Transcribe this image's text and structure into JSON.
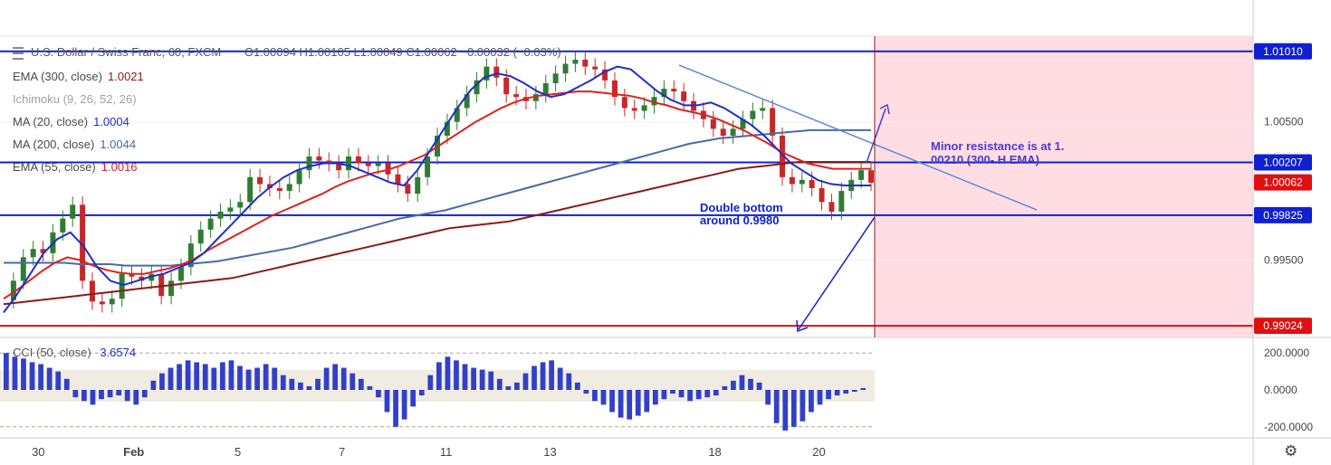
{
  "header": {
    "symbol": "U.S. Dollar / Swiss Franc, 60, FXCM",
    "ohlc": "O1.00094  H1.00105  L1.00049  C1.00062  −0.00032 (−0.03%)"
  },
  "indicators": [
    {
      "name": "EMA (300, close)",
      "value": "1.0021",
      "color": "#8b1a1a"
    },
    {
      "name": "Ichimoku (9, 26, 52, 26)",
      "value": "",
      "color": "#9a9a9a"
    },
    {
      "name": "MA (20, close)",
      "value": "1.0004",
      "color": "#1f2fc8"
    },
    {
      "name": "MA (200, close)",
      "value": "1.0044",
      "color": "#4a6aa8"
    },
    {
      "name": "EMA (55, close)",
      "value": "1.0016",
      "color": "#e02020"
    }
  ],
  "cci": {
    "label": "CCI (50, close)",
    "value": "3.6574"
  },
  "annotations": {
    "resistance": "Minor resistance is at 1. 00210 (300- H EMA)",
    "support_line1": "Double bottom",
    "support_line2": "around 0.9980"
  },
  "icons": {
    "settings": "gear-icon"
  },
  "colors": {
    "bull": "#2e7d32",
    "bear": "#c62828",
    "forecast_zone": "#ffdde3",
    "hline_blue": "#1020d0",
    "hline_red": "#e01010"
  },
  "chart_data": {
    "type": "line",
    "title": "U.S. Dollar / Swiss Franc, 60, FXCM",
    "xlabel": "",
    "ylabel": "",
    "ylim": [
      0.9894,
      1.0112
    ],
    "x_ticks": [
      {
        "label": "30",
        "idx": 4
      },
      {
        "label": "Feb",
        "idx": 15
      },
      {
        "label": "5",
        "idx": 27
      },
      {
        "label": "7",
        "idx": 39
      },
      {
        "label": "11",
        "idx": 51
      },
      {
        "label": "13",
        "idx": 63
      },
      {
        "label": "18",
        "idx": 82
      },
      {
        "label": "20",
        "idx": 94
      }
    ],
    "y_ticks": [
      1.005,
      0.995
    ],
    "y_tick_labels": [
      "1.00500",
      "0.99500"
    ],
    "price_tags": [
      {
        "label": "1.01010",
        "value": 1.0101,
        "color": "#1020d0"
      },
      {
        "label": "1.00207",
        "value": 1.00207,
        "color": "#1020d0"
      },
      {
        "label": "1.00062",
        "value": 1.00062,
        "color": "#e01010"
      },
      {
        "label": "0.99825",
        "value": 0.99825,
        "color": "#1020d0"
      },
      {
        "label": "0.99024",
        "value": 0.99024,
        "color": "#e01010"
      }
    ],
    "horizontal_lines": [
      {
        "value": 1.0101,
        "color": "#1020d0"
      },
      {
        "value": 1.00207,
        "color": "#1020d0"
      },
      {
        "value": 0.99825,
        "color": "#1020d0"
      },
      {
        "value": 0.99024,
        "color": "#e01010"
      }
    ],
    "close": [
      0.9921,
      0.9935,
      0.9952,
      0.9958,
      0.9955,
      0.997,
      0.998,
      0.999,
      0.9935,
      0.992,
      0.9918,
      0.9922,
      0.994,
      0.9938,
      0.9935,
      0.994,
      0.9924,
      0.9935,
      0.9945,
      0.9962,
      0.9972,
      0.998,
      0.9985,
      0.9988,
      0.9992,
      1.001,
      1.0005,
      1.0002,
      1.0,
      1.0005,
      1.0015,
      1.0025,
      1.0022,
      1.002,
      1.0015,
      1.0025,
      1.002,
      1.0018,
      1.002,
      1.0012,
      1.0005,
      0.9998,
      1.001,
      1.0025,
      1.004,
      1.005,
      1.006,
      1.007,
      1.008,
      1.009,
      1.0082,
      1.007,
      1.0068,
      1.0065,
      1.007,
      1.0078,
      1.0085,
      1.0092,
      1.0095,
      1.009,
      1.0088,
      1.008,
      1.0068,
      1.006,
      1.0058,
      1.0062,
      1.0068,
      1.0074,
      1.0072,
      1.0065,
      1.0058,
      1.0052,
      1.0045,
      1.004,
      1.0045,
      1.0052,
      1.0058,
      1.006,
      1.004,
      1.001,
      1.0005,
      1.0008,
      1.0002,
      0.9992,
      0.9985,
      1.0,
      1.0008,
      1.0015,
      1.0006
    ],
    "series": [
      {
        "name": "EMA (300, close)",
        "color": "#8b1a1a",
        "values": [
          0.9918,
          0.9919,
          0.992,
          0.9921,
          0.9922,
          0.9923,
          0.9924,
          0.9925,
          0.9926,
          0.9927,
          0.9928,
          0.9929,
          0.993,
          0.9931,
          0.9932,
          0.9933,
          0.9934,
          0.9935,
          0.9936,
          0.9937,
          0.9939,
          0.9941,
          0.9943,
          0.9945,
          0.9947,
          0.9949,
          0.9951,
          0.9953,
          0.9955,
          0.9957,
          0.9959,
          0.9961,
          0.9963,
          0.9965,
          0.9967,
          0.9969,
          0.9971,
          0.9973,
          0.9974,
          0.9975,
          0.9976,
          0.9977,
          0.9978,
          0.998,
          0.9982,
          0.9984,
          0.9986,
          0.9988,
          0.999,
          0.9992,
          0.9994,
          0.9996,
          0.9998,
          1.0,
          1.0002,
          1.0004,
          1.0006,
          1.0008,
          1.001,
          1.0012,
          1.0014,
          1.0016,
          1.0017,
          1.0018,
          1.0019,
          1.002,
          1.0021,
          1.0021,
          1.0021,
          1.0021,
          1.0021,
          1.0021,
          1.0021
        ]
      },
      {
        "name": "MA (200, close)",
        "color": "#4a6aa8",
        "values": [
          0.9948,
          0.9948,
          0.9948,
          0.9948,
          0.9948,
          0.9947,
          0.9947,
          0.9947,
          0.9946,
          0.9946,
          0.9946,
          0.9946,
          0.9947,
          0.9948,
          0.9949,
          0.9951,
          0.9953,
          0.9955,
          0.9957,
          0.9959,
          0.9962,
          0.9965,
          0.9968,
          0.9971,
          0.9974,
          0.9977,
          0.998,
          0.9982,
          0.9984,
          0.9986,
          0.9989,
          0.9992,
          0.9995,
          0.9998,
          1.0001,
          1.0004,
          1.0007,
          1.001,
          1.0013,
          1.0016,
          1.0019,
          1.0022,
          1.0025,
          1.0028,
          1.0031,
          1.0034,
          1.0036,
          1.0038,
          1.0039,
          1.004,
          1.0041,
          1.0042,
          1.0043,
          1.0044,
          1.0044,
          1.0044,
          1.0044,
          1.0044
        ]
      },
      {
        "name": "EMA (55, close)",
        "color": "#e02020",
        "values": [
          0.9922,
          0.9928,
          0.9935,
          0.9942,
          0.9948,
          0.9952,
          0.995,
          0.9946,
          0.9943,
          0.9941,
          0.994,
          0.994,
          0.9942,
          0.9944,
          0.9947,
          0.9951,
          0.9957,
          0.9962,
          0.9967,
          0.9972,
          0.9977,
          0.9982,
          0.9986,
          0.999,
          0.9994,
          0.9998,
          1.0003,
          1.0007,
          1.001,
          1.0013,
          1.0015,
          1.0018,
          1.0022,
          1.0026,
          1.0032,
          1.0038,
          1.0044,
          1.005,
          1.0055,
          1.006,
          1.0064,
          1.0067,
          1.0069,
          1.007,
          1.0071,
          1.0072,
          1.0072,
          1.0071,
          1.007,
          1.0069,
          1.0067,
          1.0064,
          1.0062,
          1.0059,
          1.0057,
          1.0055,
          1.0052,
          1.0048,
          1.0044,
          1.0039,
          1.0034,
          1.0028,
          1.0024,
          1.002,
          1.0018,
          1.0016,
          1.0016,
          1.0016,
          1.0016
        ]
      },
      {
        "name": "MA (20, close)",
        "color": "#1f2fc8",
        "values": [
          0.9912,
          0.9925,
          0.994,
          0.9955,
          0.9965,
          0.997,
          0.996,
          0.9945,
          0.9935,
          0.9932,
          0.9935,
          0.9938,
          0.994,
          0.9944,
          0.9948,
          0.9955,
          0.9965,
          0.9975,
          0.9985,
          0.9995,
          1.0003,
          1.001,
          1.0015,
          1.0018,
          1.002,
          1.002,
          1.0018,
          1.0014,
          1.001,
          1.0006,
          1.0004,
          1.0015,
          1.003,
          1.0045,
          1.006,
          1.0073,
          1.0082,
          1.0085,
          1.0083,
          1.0078,
          1.0072,
          1.0068,
          1.007,
          1.0075,
          1.008,
          1.0086,
          1.009,
          1.0088,
          1.008,
          1.0072,
          1.0066,
          1.0062,
          1.0062,
          1.0064,
          1.006,
          1.0054,
          1.0048,
          1.004,
          1.003,
          1.002,
          1.0014,
          1.0008,
          1.0005,
          1.0004,
          1.0004,
          1.0004
        ]
      }
    ],
    "cci_values": [
      200,
      180,
      170,
      150,
      140,
      120,
      100,
      60,
      -40,
      -60,
      -80,
      -50,
      -40,
      -30,
      -60,
      -80,
      -40,
      50,
      90,
      120,
      140,
      160,
      150,
      140,
      120,
      150,
      160,
      130,
      110,
      120,
      140,
      120,
      80,
      60,
      40,
      20,
      60,
      120,
      140,
      120,
      90,
      60,
      20,
      -40,
      -120,
      -200,
      -160,
      -90,
      -30,
      80,
      150,
      180,
      160,
      140,
      120,
      110,
      100,
      60,
      20,
      40,
      90,
      130,
      150,
      160,
      120,
      90,
      40,
      -20,
      -60,
      -80,
      -120,
      -150,
      -160,
      -140,
      -120,
      -80,
      -50,
      -20,
      -40,
      -60,
      -50,
      -40,
      -30,
      20,
      50,
      80,
      60,
      40,
      -80,
      -180,
      -220,
      -200,
      -170,
      -120,
      -80,
      -50,
      -30,
      -20,
      -10,
      10
    ],
    "cci_ylim": [
      -250,
      250
    ],
    "cci_ticks": [
      "200.0000",
      "0.0000",
      "-200.0000"
    ],
    "cci_tick_values": [
      200,
      0,
      -200
    ]
  }
}
